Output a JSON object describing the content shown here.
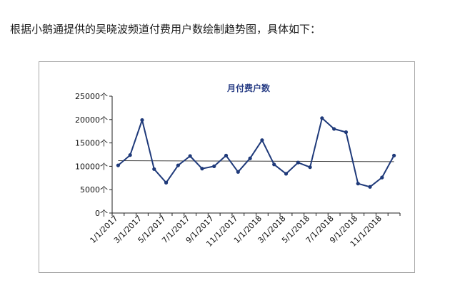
{
  "intro_text": "根据小鹅通提供的吴晓波频道付费用户数绘制趋势图，具体如下：",
  "chart_data": {
    "type": "line",
    "title": "月付费户数",
    "xlabel": "",
    "ylabel": "",
    "ylim": [
      0,
      25000
    ],
    "yticks": [
      0,
      5000,
      10000,
      15000,
      20000,
      25000
    ],
    "ytick_labels": [
      "0个",
      "5000个",
      "10000个",
      "15000个",
      "20000个",
      "25000个"
    ],
    "x": [
      "1/1/2017",
      "2/1/2017",
      "3/1/2017",
      "4/1/2017",
      "5/1/2017",
      "6/1/2017",
      "7/1/2017",
      "8/1/2017",
      "9/1/2017",
      "10/1/2017",
      "11/1/2017",
      "12/1/2017",
      "1/1/2018",
      "2/1/2018",
      "3/1/2018",
      "4/1/2018",
      "5/1/2018",
      "6/1/2018",
      "7/1/2018",
      "8/1/2018",
      "9/1/2018",
      "10/1/2018",
      "11/1/2018",
      "12/1/2018"
    ],
    "xtick_labels": [
      "1/1/2017",
      "3/1/2017",
      "5/1/2017",
      "7/1/2017",
      "9/1/2017",
      "11/1/2017",
      "1/1/2018",
      "3/1/2018",
      "5/1/2018",
      "7/1/2018",
      "9/1/2018",
      "11/1/2018"
    ],
    "series": [
      {
        "values": [
          10200,
          12400,
          19900,
          9400,
          6500,
          10200,
          12200,
          9500,
          10000,
          12300,
          8800,
          11700,
          15600,
          10400,
          8400,
          10800,
          9800,
          20300,
          18000,
          17300,
          6300,
          5600,
          7600,
          12300
        ],
        "color": "#1f3a7a"
      }
    ],
    "trendline": {
      "start": 11200,
      "end": 11000,
      "color": "#3c3c3c"
    },
    "grid": false,
    "legend": "none"
  }
}
